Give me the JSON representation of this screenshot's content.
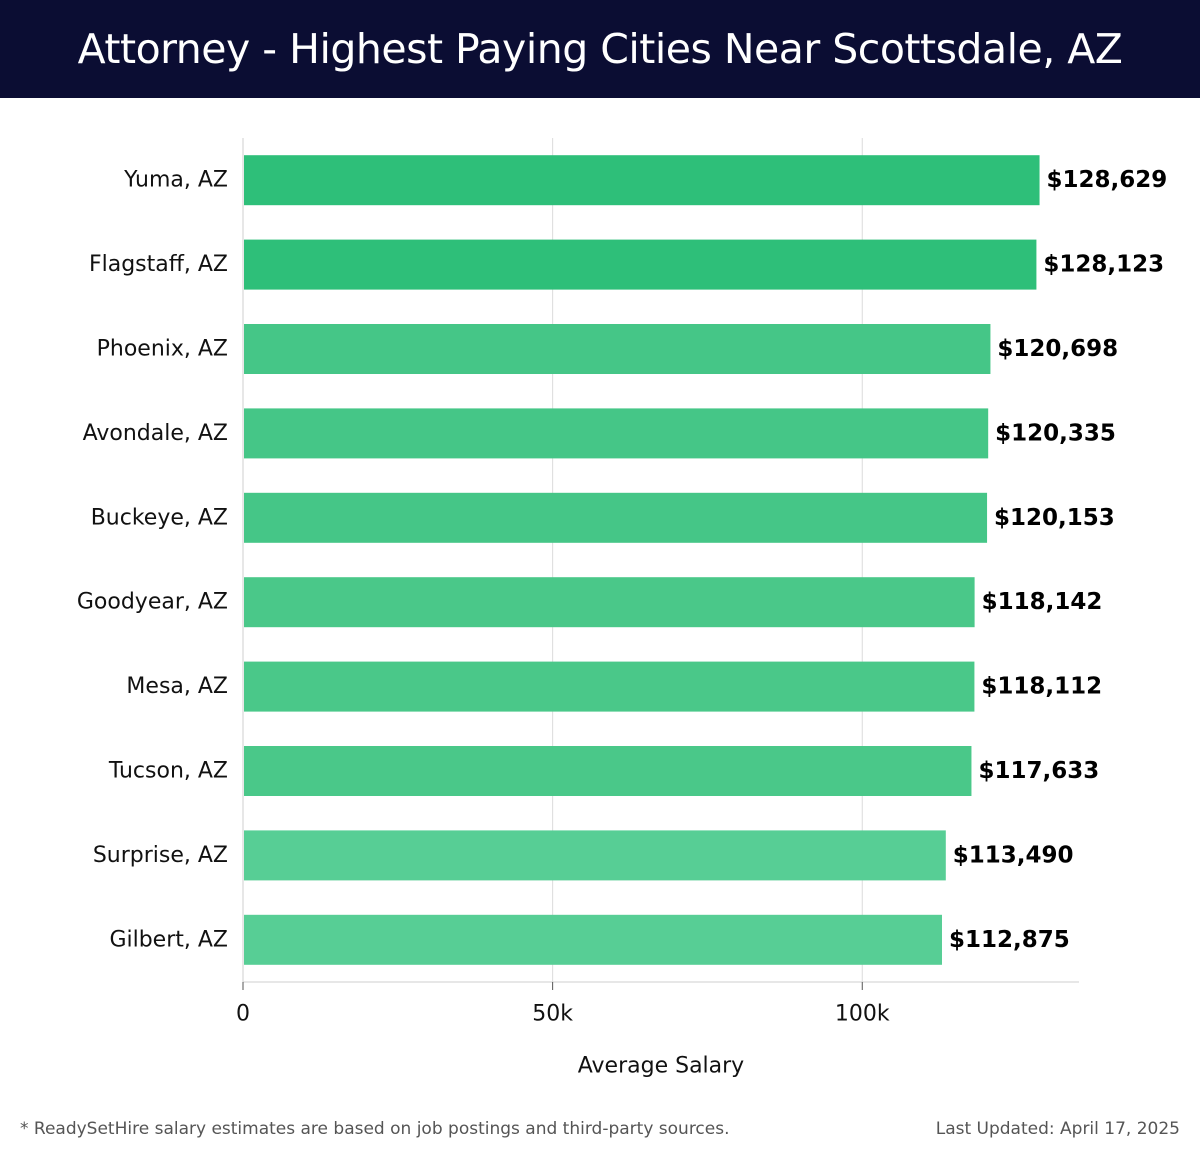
{
  "header": {
    "title": "Attorney - Highest Paying Cities Near Scottsdale, AZ"
  },
  "chart_data": {
    "type": "bar",
    "orientation": "horizontal",
    "title": "Attorney - Highest Paying Cities Near Scottsdale, AZ",
    "categories": [
      "Yuma, AZ",
      "Flagstaff, AZ",
      "Phoenix, AZ",
      "Avondale, AZ",
      "Buckeye, AZ",
      "Goodyear, AZ",
      "Mesa, AZ",
      "Tucson, AZ",
      "Surprise, AZ",
      "Gilbert, AZ"
    ],
    "values": [
      128629,
      128123,
      120698,
      120335,
      120153,
      118142,
      118112,
      117633,
      113490,
      112875
    ],
    "value_labels": [
      "$128,629",
      "$128,123",
      "$120,698",
      "$120,335",
      "$120,153",
      "$118,142",
      "$118,112",
      "$117,633",
      "$113,490",
      "$112,875"
    ],
    "bar_colors": [
      "#2ebf79",
      "#2ebf79",
      "#45c687",
      "#45c687",
      "#45c687",
      "#4ac889",
      "#4ac889",
      "#4ac889",
      "#57ce95",
      "#57ce95"
    ],
    "xlabel": "Average Salary",
    "ylabel": "",
    "xlim": [
      0,
      135000
    ],
    "xticks": [
      0,
      50000,
      100000
    ],
    "xtick_labels": [
      "0",
      "50k",
      "100k"
    ],
    "grid": true
  },
  "footer": {
    "note": "* ReadySetHire salary estimates are based on job postings and third-party sources.",
    "updated": "Last Updated: April 17, 2025"
  }
}
